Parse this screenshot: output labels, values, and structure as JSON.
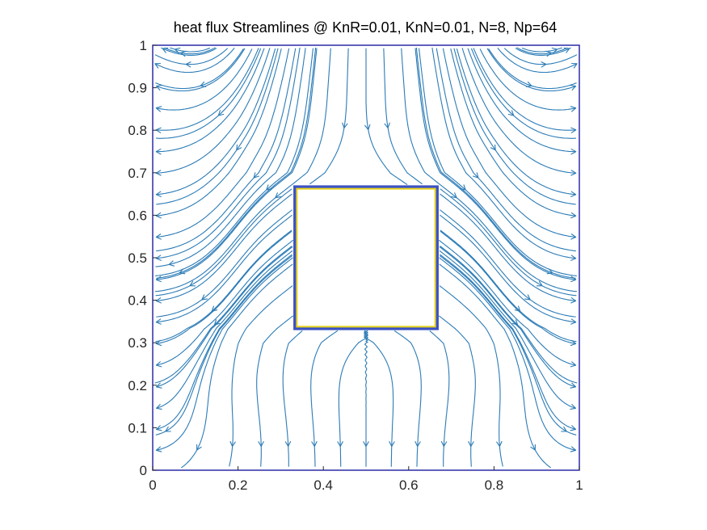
{
  "chart_data": {
    "type": "streamline",
    "title": "heat flux Streamlines @ KnR=0.01, KnN=0.01, N=8, Np=64",
    "xlabel": "",
    "ylabel": "",
    "xlim": [
      0,
      1
    ],
    "ylim": [
      0,
      1
    ],
    "x_ticks": [
      "0",
      "0.2",
      "0.4",
      "0.6",
      "0.8",
      "1"
    ],
    "y_ticks": [
      "0",
      "0.1",
      "0.2",
      "0.3",
      "0.4",
      "0.5",
      "0.6",
      "0.7",
      "0.8",
      "0.9",
      "1"
    ],
    "grid": false,
    "obstacle": {
      "x": [
        0.333,
        0.667
      ],
      "y": [
        0.333,
        0.667
      ]
    },
    "colors": {
      "streamline": "#2b7bb6",
      "domain_border": "#2b2ba8",
      "obstacle_outer": "#3a52c4",
      "obstacle_inner": "#e6d21a",
      "axis": "#262626"
    }
  }
}
